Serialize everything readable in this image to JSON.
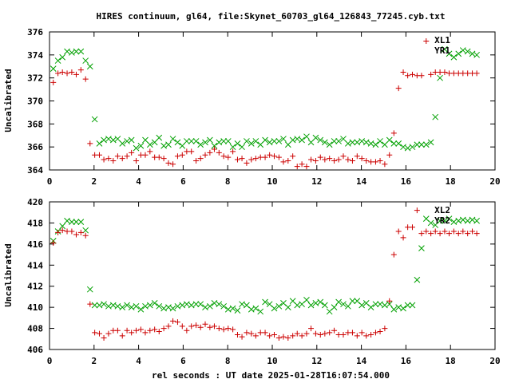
{
  "title": "HIRES continuum, gl64, file:Skynet_60703_gl64_126843_77245.cyb.txt",
  "xlabel": "rel seconds : UT date 2025-01-28T16:07:54.000",
  "colors": {
    "green": "#00a000",
    "red": "#cc0000",
    "axis": "#000000"
  },
  "chart_data": [
    {
      "type": "scatter",
      "ylabel": "Uncalibrated",
      "xlim": [
        0,
        20
      ],
      "ylim": [
        364,
        376
      ],
      "xticks": [
        0,
        2,
        4,
        6,
        8,
        10,
        12,
        14,
        16,
        18,
        20
      ],
      "yticks": [
        364,
        366,
        368,
        370,
        372,
        374,
        376
      ],
      "grid": false,
      "legend": "top-right",
      "series": [
        {
          "name": "XL1",
          "marker": "x",
          "color": "#00a000",
          "x": [
            0.17,
            0.38,
            0.58,
            0.79,
            1.0,
            1.2,
            1.41,
            1.62,
            1.82,
            2.03,
            2.24,
            2.44,
            2.65,
            2.86,
            3.06,
            3.27,
            3.48,
            3.68,
            3.89,
            4.1,
            4.3,
            4.51,
            4.72,
            4.92,
            5.13,
            5.34,
            5.54,
            5.75,
            5.96,
            6.16,
            6.37,
            6.58,
            6.78,
            6.99,
            7.2,
            7.4,
            7.61,
            7.82,
            8.02,
            8.23,
            8.44,
            8.64,
            8.85,
            9.06,
            9.26,
            9.47,
            9.68,
            9.88,
            10.09,
            10.3,
            10.5,
            10.71,
            10.92,
            11.12,
            11.33,
            11.54,
            11.74,
            11.95,
            12.16,
            12.36,
            12.57,
            12.78,
            12.98,
            13.19,
            13.4,
            13.6,
            13.81,
            14.02,
            14.22,
            14.43,
            14.64,
            14.84,
            15.05,
            15.26,
            15.46,
            15.67,
            15.88,
            16.08,
            16.29,
            16.5,
            16.7,
            16.91,
            17.12,
            17.32,
            17.53,
            17.74,
            17.94,
            18.15,
            18.36,
            18.56,
            18.77,
            18.98,
            19.18
          ],
          "y": [
            372.8,
            373.5,
            373.8,
            374.3,
            374.2,
            374.3,
            374.3,
            373.5,
            373.0,
            368.4,
            366.3,
            366.6,
            366.7,
            366.6,
            366.7,
            366.3,
            366.5,
            366.6,
            365.9,
            366.1,
            366.6,
            366.2,
            366.4,
            366.8,
            366.1,
            366.2,
            366.7,
            366.4,
            366.1,
            366.5,
            366.5,
            366.5,
            366.2,
            366.4,
            366.6,
            366.1,
            366.4,
            366.5,
            366.5,
            366.0,
            366.3,
            366.0,
            366.5,
            366.3,
            366.5,
            366.2,
            366.6,
            366.4,
            366.5,
            366.5,
            366.7,
            366.2,
            366.6,
            366.7,
            366.6,
            366.9,
            366.4,
            366.8,
            366.6,
            366.4,
            366.2,
            366.5,
            366.5,
            366.7,
            366.3,
            366.4,
            366.4,
            366.5,
            366.4,
            366.3,
            366.2,
            366.5,
            366.2,
            366.6,
            366.3,
            366.3,
            366.0,
            365.9,
            366.0,
            366.2,
            366.2,
            366.2,
            366.4,
            368.6,
            372.0,
            374.5,
            374.1,
            373.8,
            374.1,
            374.4,
            374.3,
            374.1,
            374.0
          ]
        },
        {
          "name": "YR1",
          "marker": "+",
          "color": "#cc0000",
          "x": [
            0.17,
            0.38,
            0.58,
            0.79,
            1.0,
            1.2,
            1.41,
            1.62,
            1.82,
            2.03,
            2.24,
            2.44,
            2.65,
            2.86,
            3.06,
            3.27,
            3.48,
            3.68,
            3.89,
            4.1,
            4.3,
            4.51,
            4.72,
            4.92,
            5.13,
            5.34,
            5.54,
            5.75,
            5.96,
            6.16,
            6.37,
            6.58,
            6.78,
            6.99,
            7.2,
            7.4,
            7.61,
            7.82,
            8.02,
            8.23,
            8.44,
            8.64,
            8.85,
            9.06,
            9.26,
            9.47,
            9.68,
            9.88,
            10.09,
            10.3,
            10.5,
            10.71,
            10.92,
            11.12,
            11.33,
            11.54,
            11.74,
            11.95,
            12.16,
            12.36,
            12.57,
            12.78,
            12.98,
            13.19,
            13.4,
            13.6,
            13.81,
            14.02,
            14.22,
            14.43,
            14.64,
            14.84,
            15.05,
            15.26,
            15.46,
            15.67,
            15.88,
            16.08,
            16.29,
            16.5,
            16.7,
            16.91,
            17.12,
            17.32,
            17.53,
            17.74,
            17.94,
            18.15,
            18.36,
            18.56,
            18.77,
            18.98,
            19.18
          ],
          "y": [
            371.6,
            372.4,
            372.5,
            372.4,
            372.5,
            372.3,
            372.7,
            371.9,
            366.3,
            365.3,
            365.3,
            364.9,
            365.0,
            364.8,
            365.2,
            365.0,
            365.2,
            365.5,
            364.8,
            365.3,
            365.3,
            365.6,
            365.1,
            365.1,
            365.0,
            364.6,
            364.5,
            365.2,
            365.3,
            365.6,
            365.6,
            364.8,
            365.0,
            365.3,
            365.5,
            365.8,
            365.5,
            365.2,
            365.1,
            365.6,
            364.9,
            365.0,
            364.6,
            364.9,
            365.0,
            365.1,
            365.1,
            365.3,
            365.2,
            365.1,
            364.7,
            364.8,
            365.2,
            364.3,
            364.5,
            364.3,
            364.9,
            364.8,
            365.1,
            364.9,
            365.0,
            364.8,
            364.9,
            365.2,
            364.9,
            364.8,
            365.2,
            365.0,
            364.8,
            364.7,
            364.7,
            364.8,
            364.5,
            365.3,
            367.2,
            371.1,
            372.5,
            372.2,
            372.3,
            372.2,
            372.2,
            375.2,
            372.3,
            372.5,
            372.5,
            372.5,
            372.4,
            372.4,
            372.4,
            372.4,
            372.4,
            372.4,
            372.4
          ]
        }
      ]
    },
    {
      "type": "scatter",
      "ylabel": "Uncalibrated",
      "xlim": [
        0,
        20
      ],
      "ylim": [
        406,
        420
      ],
      "xticks": [
        0,
        2,
        4,
        6,
        8,
        10,
        12,
        14,
        16,
        18,
        20
      ],
      "yticks": [
        406,
        408,
        410,
        412,
        414,
        416,
        418,
        420
      ],
      "grid": false,
      "legend": "top-right",
      "series": [
        {
          "name": "XL2",
          "marker": "x",
          "color": "#00a000",
          "x": [
            0.17,
            0.38,
            0.58,
            0.79,
            1.0,
            1.2,
            1.41,
            1.62,
            1.82,
            2.03,
            2.24,
            2.44,
            2.65,
            2.86,
            3.06,
            3.27,
            3.48,
            3.68,
            3.89,
            4.1,
            4.3,
            4.51,
            4.72,
            4.92,
            5.13,
            5.34,
            5.54,
            5.75,
            5.96,
            6.16,
            6.37,
            6.58,
            6.78,
            6.99,
            7.2,
            7.4,
            7.61,
            7.82,
            8.02,
            8.23,
            8.44,
            8.64,
            8.85,
            9.06,
            9.26,
            9.47,
            9.68,
            9.88,
            10.09,
            10.3,
            10.5,
            10.71,
            10.92,
            11.12,
            11.33,
            11.54,
            11.74,
            11.95,
            12.16,
            12.36,
            12.57,
            12.78,
            12.98,
            13.19,
            13.4,
            13.6,
            13.81,
            14.02,
            14.22,
            14.43,
            14.64,
            14.84,
            15.05,
            15.26,
            15.46,
            15.67,
            15.88,
            16.08,
            16.29,
            16.5,
            16.7,
            16.91,
            17.12,
            17.32,
            17.53,
            17.74,
            17.94,
            18.15,
            18.36,
            18.56,
            18.77,
            18.98,
            19.18
          ],
          "y": [
            416.3,
            417.2,
            417.7,
            418.2,
            418.1,
            418.1,
            418.1,
            417.3,
            411.7,
            410.2,
            410.2,
            410.3,
            410.1,
            410.2,
            410.1,
            410.0,
            410.2,
            410.0,
            410.1,
            409.8,
            410.1,
            410.2,
            410.4,
            410.1,
            409.9,
            410.0,
            409.9,
            410.1,
            410.2,
            410.3,
            410.2,
            410.3,
            410.3,
            410.0,
            410.1,
            410.4,
            410.3,
            410.1,
            409.8,
            409.9,
            409.7,
            410.3,
            410.2,
            409.8,
            409.9,
            409.6,
            410.5,
            410.3,
            409.9,
            410.1,
            410.4,
            410.0,
            410.6,
            410.2,
            410.3,
            410.7,
            410.2,
            410.4,
            410.5,
            410.2,
            409.6,
            410.0,
            410.5,
            410.3,
            410.1,
            410.6,
            410.6,
            410.2,
            410.4,
            410.0,
            410.3,
            410.3,
            410.2,
            410.3,
            409.8,
            410.0,
            409.9,
            410.2,
            410.2,
            412.6,
            415.6,
            418.4,
            418.0,
            417.8,
            418.2,
            418.2,
            418.4,
            418.1,
            418.2,
            418.3,
            418.2,
            418.3,
            418.2
          ]
        },
        {
          "name": "YR2",
          "marker": "+",
          "color": "#cc0000",
          "x": [
            0.17,
            0.38,
            0.58,
            0.79,
            1.0,
            1.2,
            1.41,
            1.62,
            1.82,
            2.03,
            2.24,
            2.44,
            2.65,
            2.86,
            3.06,
            3.27,
            3.48,
            3.68,
            3.89,
            4.1,
            4.3,
            4.51,
            4.72,
            4.92,
            5.13,
            5.34,
            5.54,
            5.75,
            5.96,
            6.16,
            6.37,
            6.58,
            6.78,
            6.99,
            7.2,
            7.4,
            7.61,
            7.82,
            8.02,
            8.23,
            8.44,
            8.64,
            8.85,
            9.06,
            9.26,
            9.47,
            9.68,
            9.88,
            10.09,
            10.3,
            10.5,
            10.71,
            10.92,
            11.12,
            11.33,
            11.54,
            11.74,
            11.95,
            12.16,
            12.36,
            12.57,
            12.78,
            12.98,
            13.19,
            13.4,
            13.6,
            13.81,
            14.02,
            14.22,
            14.43,
            14.64,
            14.84,
            15.05,
            15.26,
            15.46,
            15.67,
            15.88,
            16.08,
            16.29,
            16.5,
            16.7,
            16.91,
            17.12,
            17.32,
            17.53,
            17.74,
            17.94,
            18.15,
            18.36,
            18.56,
            18.77,
            18.98,
            19.18
          ],
          "y": [
            416.1,
            417.1,
            417.3,
            417.2,
            417.2,
            416.9,
            417.1,
            416.8,
            410.3,
            407.6,
            407.5,
            407.1,
            407.5,
            407.8,
            407.8,
            407.3,
            407.8,
            407.6,
            407.8,
            407.9,
            407.6,
            407.8,
            407.9,
            407.7,
            408.0,
            408.2,
            408.7,
            408.6,
            408.2,
            407.8,
            408.2,
            408.3,
            408.1,
            408.4,
            408.1,
            408.2,
            408.0,
            407.9,
            408.0,
            407.9,
            407.4,
            407.2,
            407.6,
            407.5,
            407.3,
            407.6,
            407.6,
            407.3,
            407.4,
            407.1,
            407.2,
            407.1,
            407.3,
            407.5,
            407.3,
            407.5,
            408.0,
            407.5,
            407.4,
            407.5,
            407.6,
            407.8,
            407.4,
            407.4,
            407.6,
            407.6,
            407.3,
            407.6,
            407.3,
            407.4,
            407.6,
            407.7,
            408.0,
            410.6,
            415.0,
            417.2,
            416.6,
            417.6,
            417.6,
            419.2,
            417.0,
            417.2,
            417.0,
            417.2,
            417.0,
            417.2,
            417.0,
            417.2,
            417.0,
            417.2,
            417.0,
            417.2,
            417.0
          ]
        }
      ]
    }
  ]
}
